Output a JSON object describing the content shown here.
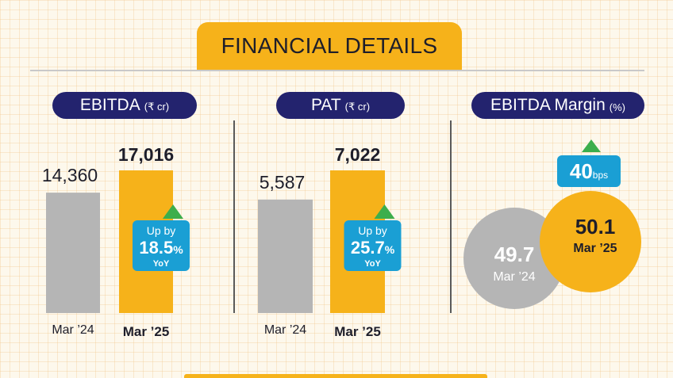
{
  "header": {
    "title": "FINANCIAL DETAILS"
  },
  "colors": {
    "accent": "#f6b21a",
    "navy": "#23236e",
    "grey": "#b5b5b5",
    "badge": "#1a9fd4",
    "up_arrow": "#3cae4c"
  },
  "sections": {
    "ebitda": {
      "label": "EBITDA",
      "unit": "(₹ cr)"
    },
    "pat": {
      "label": "PAT",
      "unit": "(₹ cr)"
    },
    "margin": {
      "label": "EBITDA Margin",
      "unit": "(%)"
    }
  },
  "chart_data": [
    {
      "type": "bar",
      "title": "EBITDA (₹ cr)",
      "categories": [
        "Mar ’24",
        "Mar ’25"
      ],
      "values": [
        14360,
        17016
      ],
      "value_labels": [
        "14,360",
        "17,016"
      ],
      "bar_colors": [
        "#b5b5b5",
        "#f6b21a"
      ],
      "change": {
        "prefix": "Up by",
        "value": "18.5",
        "unit": "%",
        "suffix": "YoY",
        "direction": "up"
      }
    },
    {
      "type": "bar",
      "title": "PAT (₹ cr)",
      "categories": [
        "Mar ’24",
        "Mar ’25"
      ],
      "values": [
        5587,
        7022
      ],
      "value_labels": [
        "5,587",
        "7,022"
      ],
      "bar_colors": [
        "#b5b5b5",
        "#f6b21a"
      ],
      "change": {
        "prefix": "Up by",
        "value": "25.7",
        "unit": "%",
        "suffix": "YoY",
        "direction": "up"
      }
    },
    {
      "type": "bubble",
      "title": "EBITDA Margin (%)",
      "categories": [
        "Mar ’24",
        "Mar ’25"
      ],
      "values": [
        49.7,
        50.1
      ],
      "value_labels": [
        "49.7",
        "50.1"
      ],
      "colors": [
        "#b5b5b5",
        "#f6b21a"
      ],
      "change": {
        "value": "40",
        "unit": "bps",
        "direction": "up"
      }
    }
  ]
}
